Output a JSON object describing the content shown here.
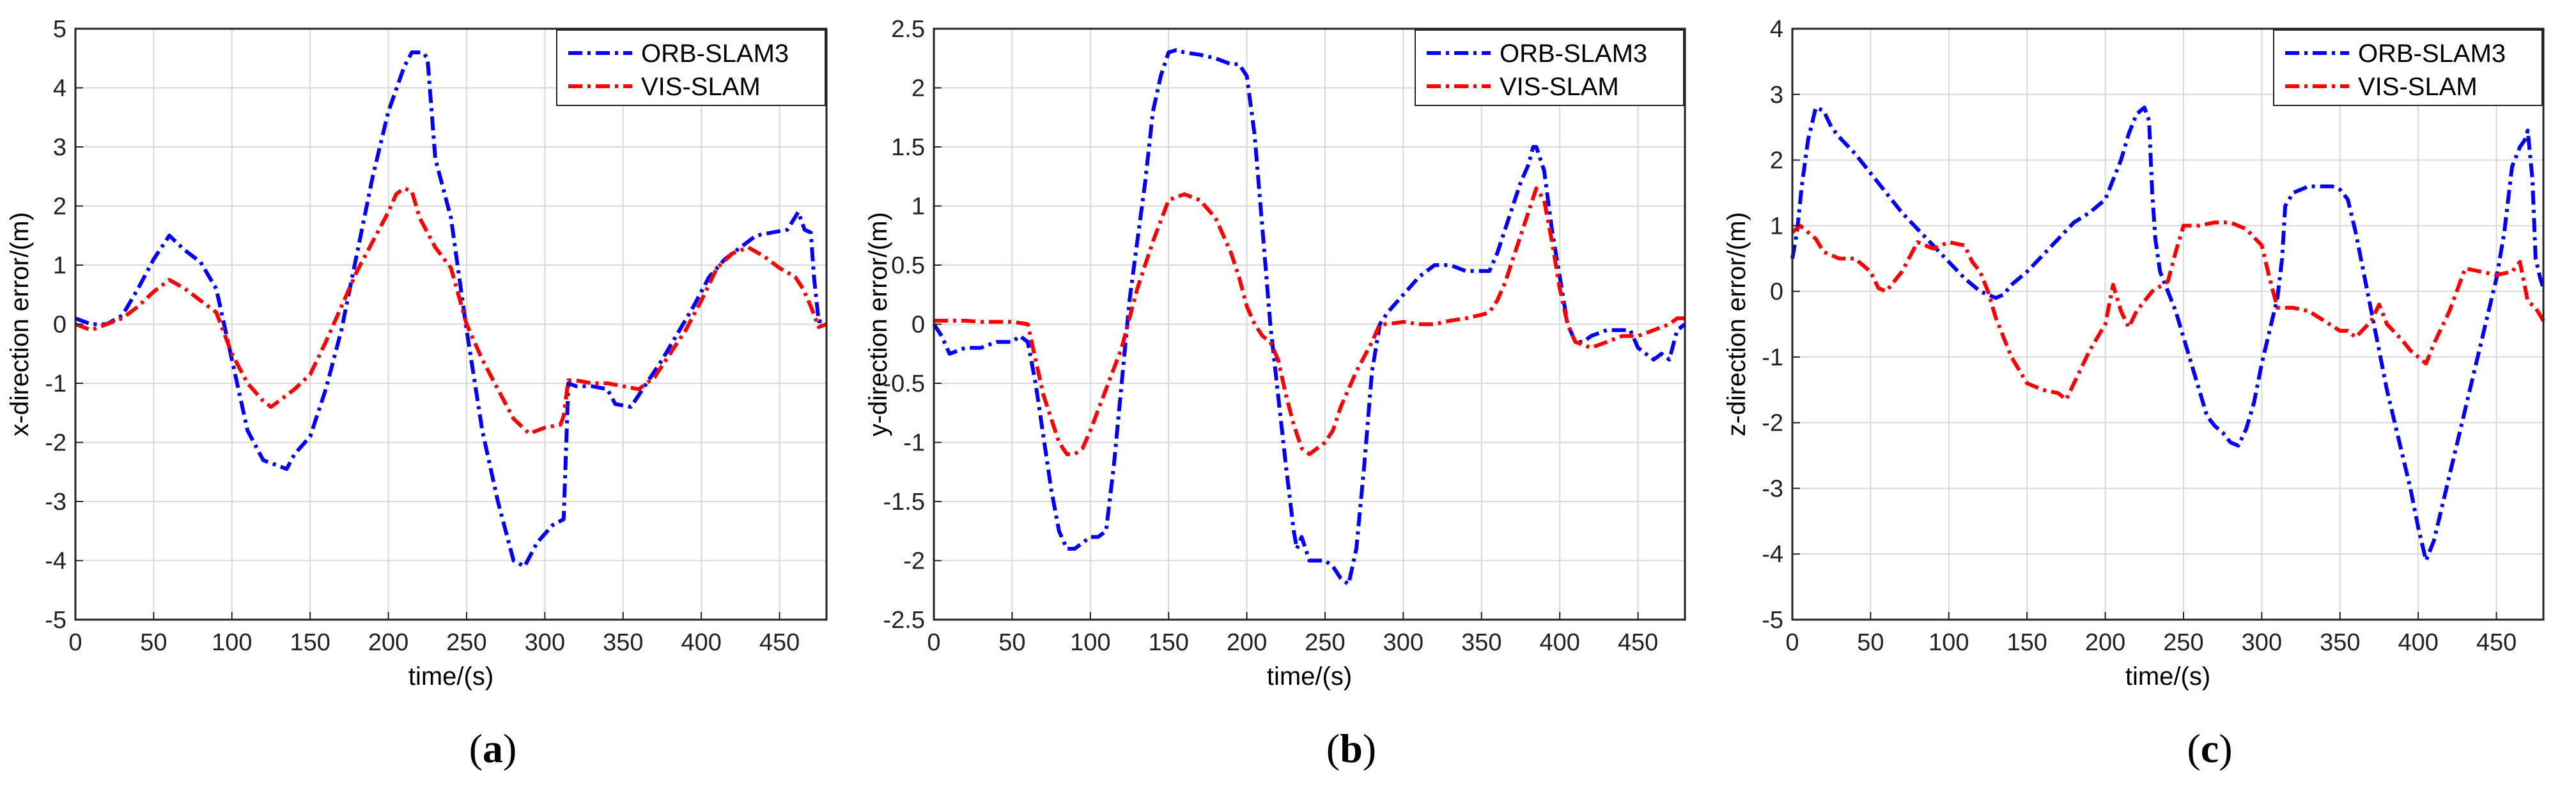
{
  "colors": {
    "orb": "#0000ff",
    "vis": "#ff0000",
    "grid": "#d9d9d9",
    "axis": "#222222"
  },
  "captions": [
    {
      "open": "(",
      "label": "a",
      "close": ")"
    },
    {
      "open": "(",
      "label": "b",
      "close": ")"
    },
    {
      "open": "(",
      "label": "c",
      "close": ")"
    }
  ],
  "chart_data": [
    {
      "type": "line",
      "title": "",
      "xlabel": "time/(s)",
      "ylabel": "x-direction error/(m)",
      "xlim": [
        0,
        480
      ],
      "ylim": [
        -5,
        5
      ],
      "xticks": [
        0,
        50,
        100,
        150,
        200,
        250,
        300,
        350,
        400,
        450
      ],
      "yticks": [
        5,
        4,
        3,
        2,
        1,
        0,
        -1,
        -2,
        -3,
        -4,
        -5
      ],
      "grid": true,
      "legend_position": "top-right",
      "series": [
        {
          "name": "ORB-SLAM3",
          "color": "#0000ff",
          "x": [
            0,
            5,
            10,
            20,
            30,
            40,
            50,
            60,
            70,
            80,
            90,
            100,
            110,
            120,
            130,
            135,
            140,
            150,
            160,
            170,
            180,
            190,
            200,
            210,
            215,
            222,
            225,
            230,
            240,
            250,
            260,
            270,
            280,
            287,
            295,
            305,
            312,
            315,
            320,
            330,
            340,
            345,
            355,
            365,
            375,
            385,
            395,
            405,
            415,
            425,
            435,
            445,
            455,
            462,
            466,
            470,
            472,
            475,
            480
          ],
          "y": [
            0.1,
            0.05,
            0.0,
            0.0,
            0.15,
            0.6,
            1.1,
            1.5,
            1.25,
            1.05,
            0.6,
            -0.6,
            -1.8,
            -2.3,
            -2.4,
            -2.45,
            -2.2,
            -1.9,
            -1.1,
            -0.1,
            1.2,
            2.5,
            3.6,
            4.35,
            4.6,
            4.6,
            4.5,
            2.8,
            1.8,
            -0.1,
            -1.8,
            -3.0,
            -4.0,
            -4.1,
            -3.7,
            -3.4,
            -3.3,
            -1.0,
            -1.05,
            -1.05,
            -1.1,
            -1.35,
            -1.4,
            -1.0,
            -0.6,
            -0.15,
            0.3,
            0.8,
            1.1,
            1.3,
            1.5,
            1.55,
            1.6,
            1.9,
            1.6,
            1.55,
            0.8,
            0.05,
            0.05
          ]
        },
        {
          "name": "VIS-SLAM",
          "color": "#ff0000",
          "x": [
            0,
            10,
            20,
            30,
            40,
            50,
            60,
            70,
            80,
            90,
            100,
            110,
            120,
            125,
            130,
            140,
            150,
            160,
            170,
            180,
            190,
            200,
            205,
            210,
            215,
            220,
            230,
            240,
            250,
            260,
            270,
            280,
            290,
            300,
            310,
            312,
            315,
            320,
            330,
            340,
            350,
            360,
            370,
            380,
            390,
            400,
            410,
            420,
            430,
            440,
            450,
            460,
            465,
            470,
            475,
            480
          ],
          "y": [
            0.0,
            -0.1,
            0.0,
            0.1,
            0.3,
            0.55,
            0.75,
            0.6,
            0.4,
            0.2,
            -0.5,
            -1.0,
            -1.3,
            -1.4,
            -1.3,
            -1.1,
            -0.85,
            -0.3,
            0.3,
            0.9,
            1.4,
            1.9,
            2.2,
            2.3,
            2.25,
            1.8,
            1.3,
            0.95,
            0.0,
            -0.6,
            -1.1,
            -1.6,
            -1.85,
            -1.75,
            -1.7,
            -1.55,
            -0.95,
            -0.95,
            -1.0,
            -1.0,
            -1.05,
            -1.1,
            -0.9,
            -0.5,
            -0.1,
            0.4,
            0.95,
            1.2,
            1.3,
            1.15,
            0.95,
            0.8,
            0.6,
            0.3,
            -0.05,
            0.0
          ]
        }
      ]
    },
    {
      "type": "line",
      "title": "",
      "xlabel": "time/(s)",
      "ylabel": "y-direction error/(m)",
      "xlim": [
        0,
        480
      ],
      "ylim": [
        -2.5,
        2.5
      ],
      "xticks": [
        0,
        50,
        100,
        150,
        200,
        250,
        300,
        350,
        400,
        450
      ],
      "yticks": [
        2.5,
        2,
        1.5,
        1,
        0.5,
        0,
        -0.5,
        -1,
        -1.5,
        -2,
        -2.5
      ],
      "grid": true,
      "legend_position": "top-right",
      "series": [
        {
          "name": "ORB-SLAM3",
          "color": "#0000ff",
          "x": [
            0,
            5,
            10,
            20,
            30,
            40,
            50,
            55,
            60,
            65,
            70,
            75,
            80,
            85,
            90,
            95,
            100,
            105,
            110,
            115,
            120,
            125,
            130,
            135,
            140,
            145,
            150,
            155,
            160,
            170,
            180,
            190,
            195,
            200,
            205,
            210,
            215,
            220,
            225,
            230,
            232,
            235,
            240,
            245,
            250,
            255,
            260,
            265,
            270,
            275,
            280,
            285,
            290,
            300,
            310,
            320,
            330,
            340,
            350,
            355,
            360,
            365,
            370,
            375,
            380,
            383,
            385,
            390,
            395,
            400,
            405,
            410,
            415,
            420,
            430,
            440,
            445,
            450,
            455,
            460,
            465,
            470,
            475,
            480
          ],
          "y": [
            0.0,
            -0.1,
            -0.25,
            -0.2,
            -0.2,
            -0.15,
            -0.15,
            -0.1,
            -0.15,
            -0.5,
            -0.95,
            -1.4,
            -1.75,
            -1.9,
            -1.9,
            -1.85,
            -1.8,
            -1.8,
            -1.75,
            -1.2,
            -0.5,
            0.2,
            0.7,
            1.2,
            1.8,
            2.1,
            2.3,
            2.32,
            2.3,
            2.28,
            2.25,
            2.2,
            2.2,
            2.1,
            1.6,
            0.8,
            0.0,
            -0.6,
            -1.2,
            -1.75,
            -1.9,
            -1.8,
            -2.0,
            -2.0,
            -2.0,
            -2.05,
            -2.15,
            -2.2,
            -1.9,
            -1.2,
            -0.4,
            0.0,
            0.1,
            0.25,
            0.4,
            0.5,
            0.5,
            0.45,
            0.45,
            0.45,
            0.6,
            0.8,
            1.0,
            1.2,
            1.35,
            1.5,
            1.5,
            1.3,
            0.8,
            0.4,
            0.0,
            -0.15,
            -0.15,
            -0.1,
            -0.05,
            -0.05,
            -0.05,
            -0.2,
            -0.25,
            -0.3,
            -0.25,
            -0.3,
            -0.05,
            0.0
          ]
        },
        {
          "name": "VIS-SLAM",
          "color": "#ff0000",
          "x": [
            0,
            10,
            20,
            30,
            40,
            50,
            60,
            65,
            70,
            75,
            80,
            85,
            90,
            95,
            100,
            110,
            120,
            130,
            140,
            150,
            160,
            170,
            180,
            190,
            195,
            200,
            205,
            210,
            215,
            220,
            225,
            230,
            235,
            240,
            245,
            250,
            255,
            260,
            270,
            280,
            285,
            290,
            300,
            310,
            320,
            330,
            340,
            350,
            355,
            360,
            365,
            370,
            375,
            380,
            385,
            390,
            395,
            400,
            405,
            410,
            420,
            430,
            440,
            450,
            460,
            470,
            475,
            480
          ],
          "y": [
            0.03,
            0.03,
            0.03,
            0.02,
            0.02,
            0.02,
            0.0,
            -0.3,
            -0.6,
            -0.8,
            -1.0,
            -1.1,
            -1.1,
            -1.05,
            -0.9,
            -0.55,
            -0.2,
            0.3,
            0.7,
            1.05,
            1.1,
            1.05,
            0.9,
            0.6,
            0.4,
            0.15,
            0.0,
            -0.1,
            -0.15,
            -0.3,
            -0.6,
            -0.85,
            -1.05,
            -1.1,
            -1.05,
            -1.0,
            -0.9,
            -0.7,
            -0.4,
            -0.15,
            0.0,
            0.0,
            0.02,
            0.0,
            0.0,
            0.03,
            0.05,
            0.08,
            0.1,
            0.2,
            0.35,
            0.55,
            0.75,
            0.95,
            1.15,
            1.05,
            0.7,
            0.3,
            0.0,
            -0.15,
            -0.2,
            -0.15,
            -0.1,
            -0.1,
            -0.05,
            0.0,
            0.05,
            0.05
          ]
        }
      ]
    },
    {
      "type": "line",
      "title": "",
      "xlabel": "time/(s)",
      "ylabel": "z-direction error/(m)",
      "xlim": [
        0,
        480
      ],
      "ylim": [
        -5,
        4
      ],
      "xticks": [
        0,
        50,
        100,
        150,
        200,
        250,
        300,
        350,
        400,
        450
      ],
      "yticks": [
        4,
        3,
        2,
        1,
        0,
        -1,
        -2,
        -3,
        -4,
        -5
      ],
      "grid": true,
      "legend_position": "top-right",
      "series": [
        {
          "name": "ORB-SLAM3",
          "color": "#0000ff",
          "x": [
            0,
            3,
            6,
            10,
            15,
            20,
            25,
            30,
            40,
            50,
            60,
            70,
            80,
            90,
            100,
            110,
            120,
            125,
            130,
            135,
            140,
            150,
            160,
            170,
            180,
            190,
            200,
            205,
            210,
            215,
            220,
            225,
            228,
            230,
            232,
            235,
            240,
            245,
            250,
            255,
            260,
            265,
            270,
            275,
            280,
            285,
            290,
            295,
            300,
            305,
            310,
            313,
            315,
            320,
            330,
            340,
            345,
            350,
            355,
            360,
            365,
            370,
            375,
            380,
            385,
            390,
            395,
            400,
            405,
            410,
            415,
            420,
            425,
            430,
            435,
            440,
            445,
            450,
            455,
            460,
            465,
            468,
            470,
            473,
            475,
            478,
            480
          ],
          "y": [
            0.5,
            0.9,
            1.6,
            2.3,
            2.8,
            2.75,
            2.5,
            2.35,
            2.1,
            1.8,
            1.5,
            1.2,
            0.95,
            0.7,
            0.45,
            0.2,
            0.0,
            -0.05,
            -0.1,
            -0.05,
            0.1,
            0.3,
            0.55,
            0.8,
            1.05,
            1.2,
            1.4,
            1.7,
            2.0,
            2.4,
            2.7,
            2.8,
            2.6,
            1.5,
            0.8,
            0.3,
            0.0,
            -0.3,
            -0.7,
            -1.1,
            -1.5,
            -1.9,
            -2.05,
            -2.15,
            -2.3,
            -2.35,
            -2.1,
            -1.7,
            -1.1,
            -0.6,
            -0.1,
            0.5,
            1.3,
            1.5,
            1.6,
            1.6,
            1.6,
            1.55,
            1.4,
            0.9,
            0.3,
            -0.3,
            -0.9,
            -1.5,
            -2.0,
            -2.5,
            -3.0,
            -3.6,
            -4.1,
            -3.8,
            -3.3,
            -2.8,
            -2.3,
            -1.8,
            -1.3,
            -0.8,
            -0.3,
            0.2,
            0.9,
            1.9,
            2.2,
            2.3,
            2.45,
            1.7,
            0.5,
            0.2,
            0.05
          ]
        },
        {
          "name": "VIS-SLAM",
          "color": "#ff0000",
          "x": [
            0,
            5,
            10,
            15,
            20,
            30,
            40,
            50,
            55,
            60,
            70,
            80,
            90,
            100,
            110,
            115,
            120,
            125,
            130,
            140,
            150,
            160,
            170,
            175,
            180,
            190,
            200,
            205,
            210,
            215,
            220,
            230,
            240,
            245,
            250,
            260,
            270,
            280,
            290,
            300,
            305,
            310,
            320,
            330,
            340,
            350,
            355,
            360,
            370,
            375,
            380,
            390,
            395,
            400,
            405,
            410,
            420,
            430,
            440,
            450,
            460,
            465,
            470,
            475,
            480
          ],
          "y": [
            0.9,
            1.0,
            0.9,
            0.8,
            0.6,
            0.5,
            0.5,
            0.3,
            0.05,
            0.0,
            0.3,
            0.75,
            0.65,
            0.75,
            0.7,
            0.45,
            0.3,
            0.0,
            -0.4,
            -1.0,
            -1.4,
            -1.5,
            -1.55,
            -1.65,
            -1.4,
            -0.9,
            -0.5,
            0.1,
            -0.3,
            -0.55,
            -0.3,
            0.0,
            0.15,
            0.6,
            1.0,
            1.0,
            1.05,
            1.05,
            0.95,
            0.7,
            0.2,
            -0.25,
            -0.25,
            -0.3,
            -0.45,
            -0.6,
            -0.6,
            -0.7,
            -0.45,
            -0.2,
            -0.5,
            -0.75,
            -0.9,
            -1.0,
            -1.1,
            -0.8,
            -0.3,
            0.35,
            0.3,
            0.25,
            0.3,
            0.45,
            -0.15,
            -0.25,
            -0.45
          ]
        }
      ]
    }
  ]
}
